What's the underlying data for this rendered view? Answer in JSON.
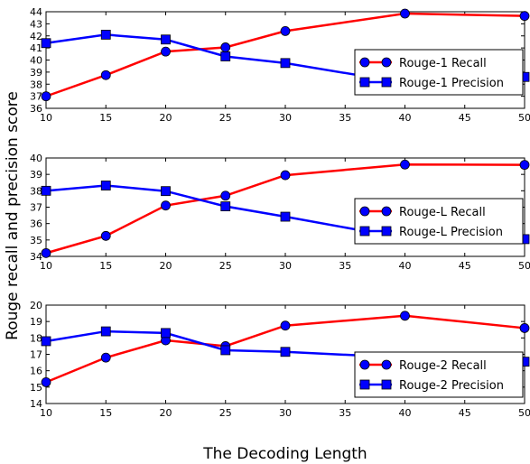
{
  "chart_data": [
    {
      "type": "line",
      "x": [
        10,
        15,
        20,
        25,
        30,
        40,
        50
      ],
      "xlim": [
        10,
        50
      ],
      "xticks": [
        10,
        15,
        20,
        25,
        30,
        35,
        40,
        45,
        50
      ],
      "ylim": [
        36,
        44
      ],
      "yticks": [
        36,
        37,
        38,
        39,
        40,
        41,
        42,
        43,
        44
      ],
      "grid": false,
      "legend_position": "right",
      "series": [
        {
          "name": "Rouge-1 Recall",
          "color": "#ff0000",
          "marker": "circle",
          "values": [
            37.0,
            38.75,
            40.7,
            41.05,
            42.4,
            43.85,
            43.65
          ]
        },
        {
          "name": "Rouge-1 Precision",
          "color": "#0000ff",
          "marker": "square",
          "values": [
            41.4,
            42.1,
            41.7,
            40.3,
            39.75,
            38.1,
            38.6
          ]
        }
      ]
    },
    {
      "type": "line",
      "x": [
        10,
        15,
        20,
        25,
        30,
        40,
        50
      ],
      "xlim": [
        10,
        50
      ],
      "xticks": [
        10,
        15,
        20,
        25,
        30,
        35,
        40,
        45,
        50
      ],
      "ylim": [
        34,
        40
      ],
      "yticks": [
        34,
        35,
        36,
        37,
        38,
        39,
        40
      ],
      "grid": false,
      "legend_position": "right",
      "series": [
        {
          "name": "Rouge-L Recall",
          "color": "#ff0000",
          "marker": "circle",
          "values": [
            34.2,
            35.25,
            37.1,
            37.7,
            38.95,
            39.6,
            39.58
          ]
        },
        {
          "name": "Rouge-L Precision",
          "color": "#0000ff",
          "marker": "square",
          "values": [
            38.0,
            38.32,
            37.98,
            37.05,
            36.42,
            35.1,
            35.05
          ]
        }
      ]
    },
    {
      "type": "line",
      "x": [
        10,
        15,
        20,
        25,
        30,
        40,
        50
      ],
      "xlim": [
        10,
        50
      ],
      "xticks": [
        10,
        15,
        20,
        25,
        30,
        35,
        40,
        45,
        50
      ],
      "ylim": [
        14,
        20
      ],
      "yticks": [
        14,
        15,
        16,
        17,
        18,
        19,
        20
      ],
      "grid": false,
      "legend_position": "lower-right",
      "series": [
        {
          "name": "Rouge-2 Recall",
          "color": "#ff0000",
          "marker": "circle",
          "values": [
            15.3,
            16.8,
            17.85,
            17.5,
            18.75,
            19.35,
            18.6
          ]
        },
        {
          "name": "Rouge-2 Precision",
          "color": "#0000ff",
          "marker": "square",
          "values": [
            17.8,
            18.4,
            18.3,
            17.25,
            17.15,
            16.8,
            16.55
          ]
        }
      ]
    }
  ],
  "labels": {
    "xlabel": "The Decoding Length",
    "ylabel": "Rouge recall and precision score"
  }
}
